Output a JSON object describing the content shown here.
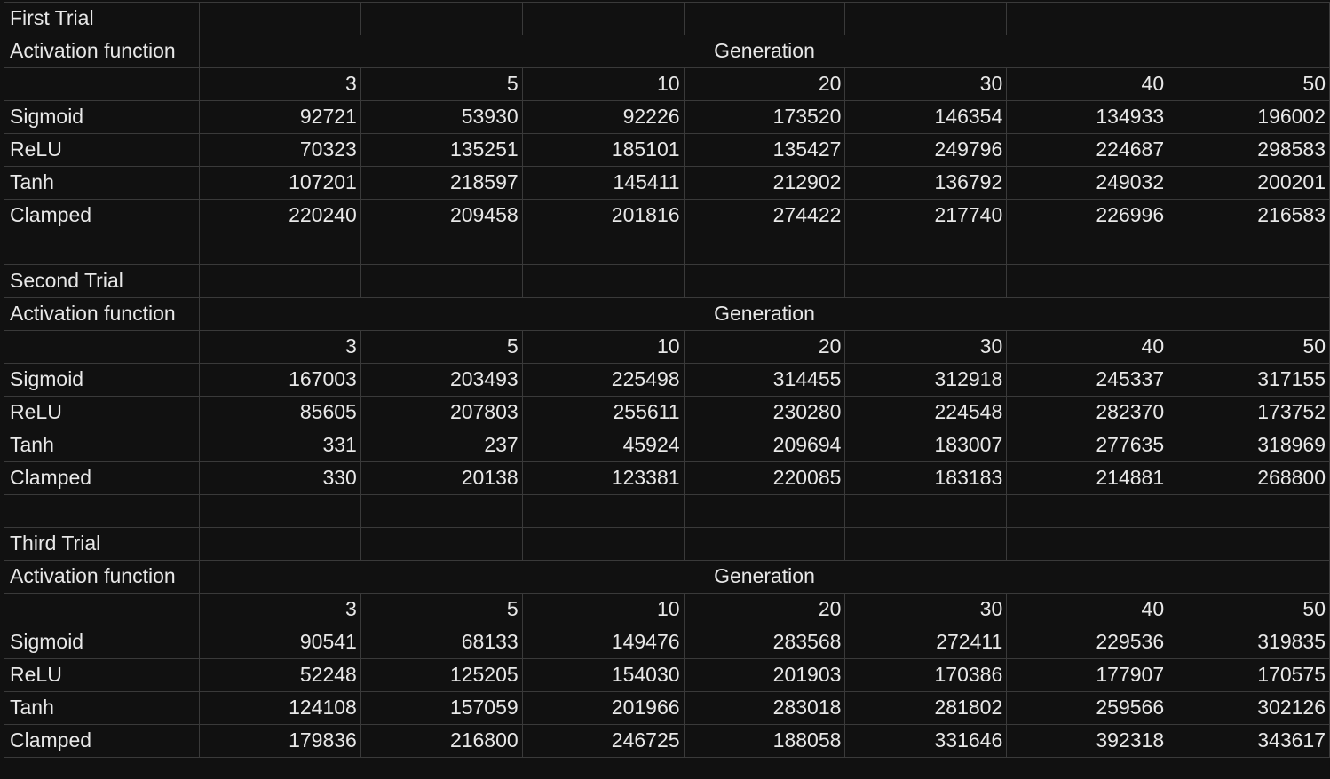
{
  "sheet": {
    "generation_header": "Generation",
    "activation_header": "Activation function",
    "generations": [
      "3",
      "5",
      "10",
      "20",
      "30",
      "40",
      "50"
    ],
    "trials": [
      {
        "title": "First Trial",
        "rows": [
          {
            "label": "Sigmoid",
            "values": [
              "92721",
              "53930",
              "92226",
              "173520",
              "146354",
              "134933",
              "196002"
            ]
          },
          {
            "label": "ReLU",
            "values": [
              "70323",
              "135251",
              "185101",
              "135427",
              "249796",
              "224687",
              "298583"
            ]
          },
          {
            "label": "Tanh",
            "values": [
              "107201",
              "218597",
              "145411",
              "212902",
              "136792",
              "249032",
              "200201"
            ]
          },
          {
            "label": "Clamped",
            "values": [
              "220240",
              "209458",
              "201816",
              "274422",
              "217740",
              "226996",
              "216583"
            ]
          }
        ]
      },
      {
        "title": "Second Trial",
        "rows": [
          {
            "label": "Sigmoid",
            "values": [
              "167003",
              "203493",
              "225498",
              "314455",
              "312918",
              "245337",
              "317155"
            ]
          },
          {
            "label": "ReLU",
            "values": [
              "85605",
              "207803",
              "255611",
              "230280",
              "224548",
              "282370",
              "173752"
            ]
          },
          {
            "label": "Tanh",
            "values": [
              "331",
              "237",
              "45924",
              "209694",
              "183007",
              "277635",
              "318969"
            ]
          },
          {
            "label": "Clamped",
            "values": [
              "330",
              "20138",
              "123381",
              "220085",
              "183183",
              "214881",
              "268800"
            ]
          }
        ]
      },
      {
        "title": "Third Trial",
        "rows": [
          {
            "label": "Sigmoid",
            "values": [
              "90541",
              "68133",
              "149476",
              "283568",
              "272411",
              "229536",
              "319835"
            ]
          },
          {
            "label": "ReLU",
            "values": [
              "52248",
              "125205",
              "154030",
              "201903",
              "170386",
              "177907",
              "170575"
            ]
          },
          {
            "label": "Tanh",
            "values": [
              "124108",
              "157059",
              "201966",
              "283018",
              "281802",
              "259566",
              "302126"
            ]
          },
          {
            "label": "Clamped",
            "values": [
              "179836",
              "216800",
              "246725",
              "188058",
              "331646",
              "392318",
              "343617"
            ]
          }
        ]
      }
    ]
  }
}
